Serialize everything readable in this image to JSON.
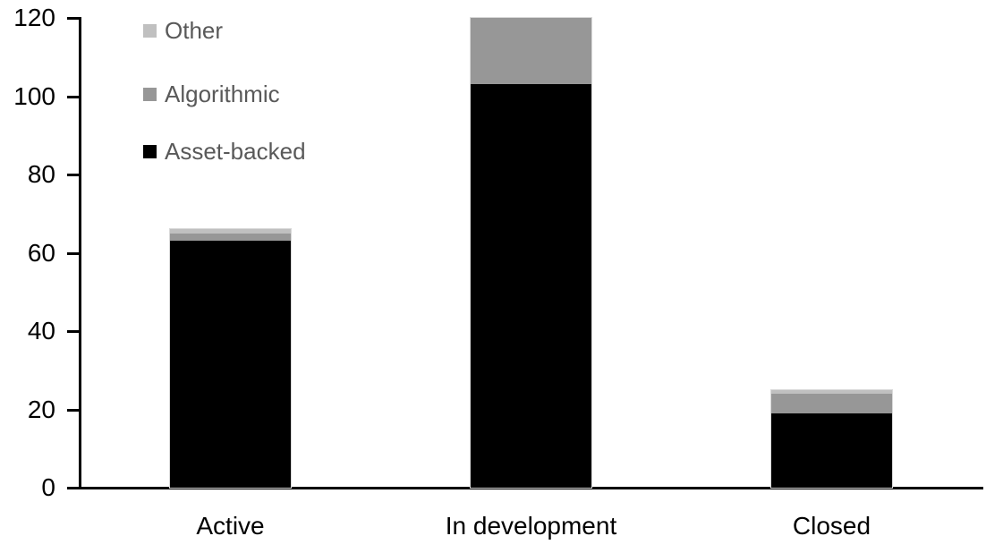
{
  "chart_data": {
    "type": "bar",
    "stacked": true,
    "title": "",
    "xlabel": "",
    "ylabel": "",
    "categories": [
      "Active",
      "In development",
      "Closed"
    ],
    "series": [
      {
        "name": "Asset-backed",
        "color": "#000000",
        "values": [
          63,
          103,
          19
        ]
      },
      {
        "name": "Algorithmic",
        "color": "#979797",
        "values": [
          2,
          17,
          5
        ]
      },
      {
        "name": "Other",
        "color": "#c0c0c0",
        "values": [
          1,
          0,
          1
        ]
      }
    ],
    "stack_totals": [
      66,
      120,
      25
    ],
    "ylim": [
      0,
      120
    ],
    "yticks": [
      0,
      20,
      40,
      60,
      80,
      100,
      120
    ],
    "grid": false,
    "legend": {
      "position": "top-left",
      "items": [
        {
          "label": "Other",
          "color": "#c0c0c0"
        },
        {
          "label": "Algorithmic",
          "color": "#979797"
        },
        {
          "label": "Asset-backed",
          "color": "#000000"
        }
      ]
    }
  },
  "colors": {
    "background": "#ffffff",
    "axis": "#000000",
    "tick_label_text": "#000000",
    "category_label_text": "#000000",
    "legend_text": "#595959",
    "bar_outline": "#d9d9d9"
  }
}
